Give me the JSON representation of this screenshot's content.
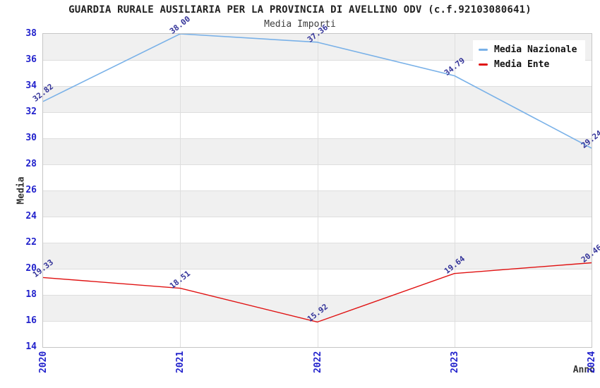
{
  "title": "GUARDIA RURALE AUSILIARIA PER LA PROVINCIA DI AVELLINO ODV (c.f.92103080641)",
  "subtitle": "Media Importi",
  "legend": {
    "position": "top-right"
  },
  "chart_data": {
    "type": "line",
    "title": "GUARDIA RURALE AUSILIARIA PER LA PROVINCIA DI AVELLINO ODV (c.f.92103080641)",
    "subtitle": "Media Importi",
    "categories": [
      "2020",
      "2021",
      "2022",
      "2023",
      "2024"
    ],
    "series": [
      {
        "name": "Media Nazionale",
        "color": "#79b1e8",
        "values": [
          32.82,
          38.0,
          37.36,
          34.79,
          29.24
        ],
        "labels": [
          "32.82",
          "38.00",
          "37.36",
          "34.79",
          "29.24"
        ]
      },
      {
        "name": "Media Ente",
        "color": "#e01212",
        "values": [
          19.33,
          18.51,
          15.92,
          19.64,
          20.46
        ],
        "labels": [
          "19.33",
          "18.51",
          "15.92",
          "19.64",
          "20.46"
        ]
      }
    ],
    "xlabel": "Anno",
    "ylabel": "Media",
    "ylim": [
      14,
      38
    ],
    "ytick_step": 2,
    "grid": true,
    "band_color": "#f0f0f0",
    "axis_tick_color": "#2222cc",
    "point_label_color": "#333399",
    "legend_position": "top-right"
  }
}
